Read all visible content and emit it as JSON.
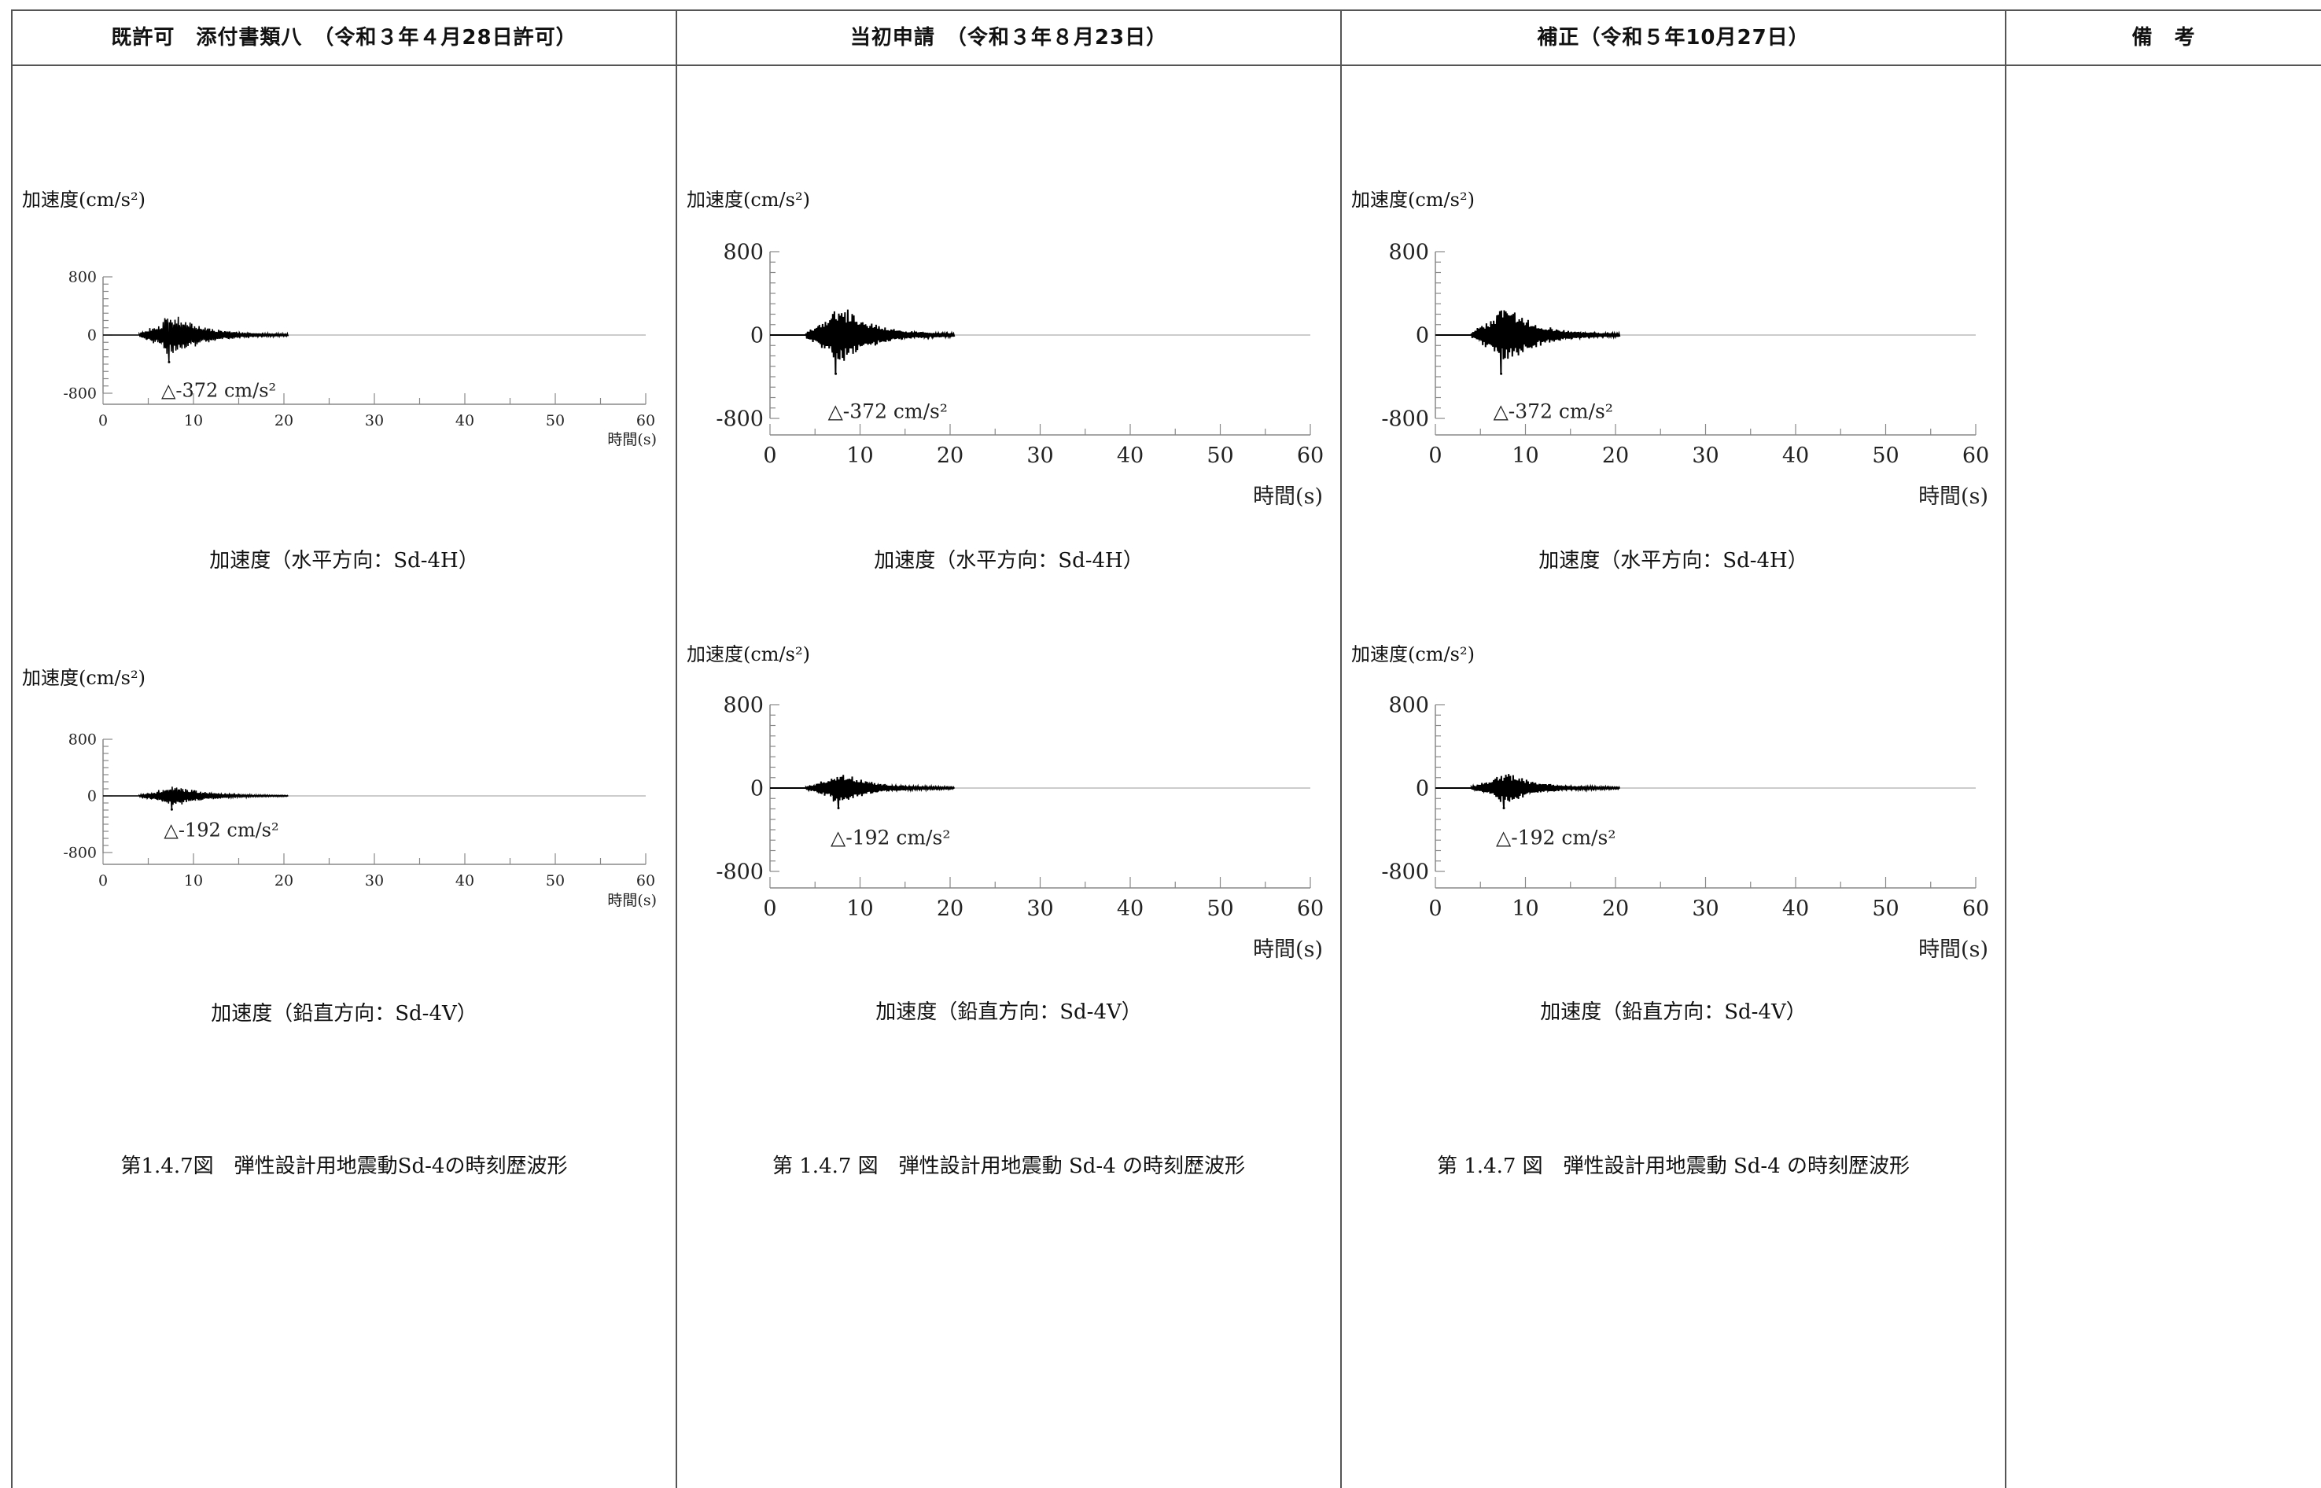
{
  "headers": [
    "既許可　添付書類八　（令和３年４月28日許可）",
    "当初申請　（令和３年８月23日）",
    "補正（令和５年10月27日）",
    "備　考"
  ],
  "accel_unit_label": "加速度(cm/s²)",
  "time_axis_label": "時間(s)",
  "captions": {
    "horizontal": "加速度（水平方向：Sd-4H）",
    "vertical": "加速度（鉛直方向：Sd-4V）"
  },
  "figure_titles": [
    "第1.4.7図　弾性設計用地震動Sd-4の時刻歴波形",
    "第 1.4.7 図　弾性設計用地震動 Sd-4 の時刻歴波形",
    "第 1.4.7 図　弾性設計用地震動 Sd-4 の時刻歴波形"
  ],
  "chart_data": [
    {
      "type": "line",
      "component": "horizontal",
      "ylabel": "加速度(cm/s²)",
      "xlabel": "時間(s)",
      "xlim": [
        0,
        60
      ],
      "ylim": [
        -800,
        800
      ],
      "x_ticks": [
        0,
        10,
        20,
        30,
        40,
        50,
        60
      ],
      "y_ticks": [
        800,
        0,
        -800
      ],
      "duration_s": 20.5,
      "peak": {
        "t": 7.3,
        "value": -372,
        "label": "△-372 cm/s²"
      }
    },
    {
      "type": "line",
      "component": "vertical",
      "ylabel": "加速度(cm/s²)",
      "xlabel": "時間(s)",
      "xlim": [
        0,
        60
      ],
      "ylim": [
        -800,
        800
      ],
      "x_ticks": [
        0,
        10,
        20,
        30,
        40,
        50,
        60
      ],
      "y_ticks": [
        800,
        0,
        -800
      ],
      "duration_s": 20.5,
      "peak": {
        "t": 7.6,
        "value": -192,
        "label": "△-192 cm/s²"
      }
    }
  ],
  "colors": {
    "line": "#000000",
    "axis": "#888888",
    "border": "#555555"
  }
}
